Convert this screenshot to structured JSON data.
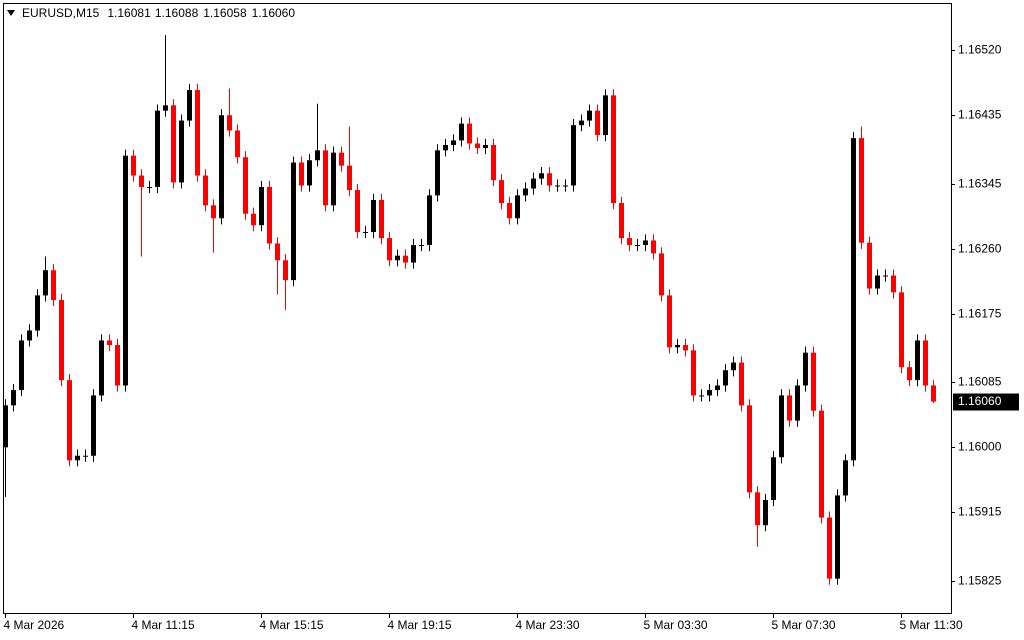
{
  "chart_data": {
    "type": "candlestick",
    "symbol": "EURUSD,M15",
    "ohlc_labels": [
      "1.16081",
      "1.16088",
      "1.16058",
      "1.16060"
    ],
    "current_price": {
      "value": 1.1606,
      "label": "1.16060"
    },
    "up_color": "#000000",
    "down_color": "#ff0000",
    "ylim": [
      1.15783,
      1.16582
    ],
    "yticks": [
      1.15825,
      1.15915,
      {
        "value": 1.16,
        "label": "1.16000"
      },
      1.16085,
      1.16175,
      {
        "value": 1.1626,
        "label": "1.16260"
      },
      1.16345,
      1.16435,
      {
        "value": 1.1652,
        "label": "1.16520"
      }
    ],
    "categories": [
      "4 Mar 2026",
      null,
      null,
      null,
      null,
      null,
      null,
      null,
      null,
      null,
      null,
      null,
      null,
      null,
      null,
      null,
      "4 Mar 11:15",
      null,
      null,
      null,
      null,
      null,
      null,
      null,
      null,
      null,
      null,
      null,
      null,
      null,
      null,
      null,
      "4 Mar 15:15",
      null,
      null,
      null,
      null,
      null,
      null,
      null,
      null,
      null,
      null,
      null,
      null,
      null,
      null,
      null,
      "4 Mar 19:15",
      null,
      null,
      null,
      null,
      null,
      null,
      null,
      null,
      null,
      null,
      null,
      null,
      null,
      null,
      null,
      "4 Mar 23:30",
      null,
      null,
      null,
      null,
      null,
      null,
      null,
      null,
      null,
      null,
      null,
      null,
      null,
      null,
      null,
      "5 Mar 03:30",
      null,
      null,
      null,
      null,
      null,
      null,
      null,
      null,
      null,
      null,
      null,
      null,
      null,
      null,
      null,
      "5 Mar 07:30",
      null,
      null,
      null,
      null,
      null,
      null,
      null,
      null,
      null,
      null,
      null,
      null,
      null,
      null,
      null,
      "5 Mar 11:30",
      null,
      null,
      null,
      null
    ],
    "open": [
      1.16,
      1.16055,
      1.16075,
      1.1614,
      1.16153,
      1.16199,
      1.16232,
      1.16193,
      1.16088,
      1.15983,
      1.15989,
      1.15989,
      1.16068,
      1.1614,
      1.16134,
      1.16081,
      1.16382,
      1.16356,
      1.16341,
      1.16341,
      1.16441,
      1.16448,
      1.16347,
      1.16428,
      1.16468,
      1.16356,
      1.16317,
      1.163,
      1.16435,
      1.16415,
      1.1638,
      1.16306,
      1.16291,
      1.16341,
      1.16267,
      1.16245,
      1.16219,
      1.16373,
      1.16343,
      1.16376,
      1.16389,
      1.16317,
      1.16386,
      1.16369,
      1.16337,
      1.16282,
      1.16282,
      1.16324,
      1.16274,
      1.16245,
      1.16251,
      1.16242,
      1.16265,
      1.16265,
      1.1633,
      1.16389,
      1.16396,
      1.16402,
      1.16424,
      1.16398,
      1.16392,
      1.16396,
      1.1635,
      1.1632,
      1.163,
      1.1633,
      1.16339,
      1.16352,
      1.16359,
      1.16343,
      1.16343,
      1.16343,
      1.16422,
      1.16428,
      1.16441,
      1.16409,
      1.16461,
      1.1632,
      1.16274,
      1.16265,
      1.16265,
      1.16271,
      1.16254,
      1.16199,
      1.16131,
      1.16134,
      1.16127,
      1.16068,
      1.16068,
      1.16075,
      1.16081,
      1.16101,
      1.16111,
      1.16055,
      1.15941,
      1.15898,
      1.15931,
      1.15987,
      1.16068,
      1.16035,
      1.16081,
      1.16124,
      1.16048,
      1.15908,
      1.15828,
      1.15937,
      1.15983,
      1.16405,
      1.16268,
      1.16208,
      1.16225,
      1.16225,
      1.16203,
      1.16105,
      1.16088,
      1.1614,
      1.16081
    ],
    "high": [
      1.16063,
      1.16083,
      1.16148,
      1.16161,
      1.16207,
      1.1625,
      1.1624,
      1.16201,
      1.16096,
      1.15997,
      1.15997,
      1.16076,
      1.16148,
      1.16148,
      1.16142,
      1.1639,
      1.1639,
      1.16364,
      1.16349,
      1.16449,
      1.1654,
      1.16456,
      1.16436,
      1.16476,
      1.16476,
      1.16364,
      1.16325,
      1.16443,
      1.1647,
      1.16423,
      1.16388,
      1.16314,
      1.16349,
      1.16349,
      1.16275,
      1.16253,
      1.16381,
      1.16381,
      1.16384,
      1.1645,
      1.16397,
      1.16394,
      1.16394,
      1.1642,
      1.16345,
      1.1629,
      1.16332,
      1.16332,
      1.16282,
      1.16259,
      1.16259,
      1.16273,
      1.16273,
      1.16338,
      1.16397,
      1.16404,
      1.1641,
      1.16432,
      1.16432,
      1.16406,
      1.16404,
      1.16404,
      1.16358,
      1.16328,
      1.16338,
      1.16347,
      1.1636,
      1.16367,
      1.16367,
      1.16351,
      1.16351,
      1.1643,
      1.16436,
      1.16449,
      1.16449,
      1.16469,
      1.16469,
      1.16328,
      1.16282,
      1.16273,
      1.16279,
      1.16279,
      1.16262,
      1.16207,
      1.16142,
      1.16142,
      1.16135,
      1.16076,
      1.16083,
      1.16089,
      1.16109,
      1.16119,
      1.16119,
      1.16063,
      1.15949,
      1.15939,
      1.15995,
      1.16076,
      1.16076,
      1.16089,
      1.16132,
      1.16132,
      1.16056,
      1.15916,
      1.15945,
      1.15991,
      1.16413,
      1.1642,
      1.16276,
      1.16233,
      1.16233,
      1.16233,
      1.16211,
      1.16113,
      1.16148,
      1.16148,
      1.16088
    ],
    "low": [
      1.15935,
      1.16047,
      1.16067,
      1.16132,
      1.16145,
      1.16191,
      1.16185,
      1.1608,
      1.15975,
      1.15975,
      1.15981,
      1.15981,
      1.1606,
      1.16126,
      1.16073,
      1.16073,
      1.16348,
      1.1625,
      1.16333,
      1.16333,
      1.16433,
      1.16339,
      1.16339,
      1.1642,
      1.16348,
      1.16309,
      1.16255,
      1.16292,
      1.16407,
      1.16372,
      1.16298,
      1.16283,
      1.16283,
      1.16259,
      1.162,
      1.1618,
      1.16211,
      1.16335,
      1.16335,
      1.16368,
      1.16309,
      1.16309,
      1.16361,
      1.16329,
      1.16274,
      1.16274,
      1.16274,
      1.16266,
      1.16237,
      1.16237,
      1.16234,
      1.16234,
      1.16257,
      1.16257,
      1.16322,
      1.16381,
      1.16388,
      1.16394,
      1.1639,
      1.16384,
      1.16384,
      1.16342,
      1.16312,
      1.16292,
      1.16292,
      1.16322,
      1.16331,
      1.16344,
      1.16335,
      1.16335,
      1.16335,
      1.16335,
      1.16414,
      1.1642,
      1.16401,
      1.16401,
      1.16312,
      1.16266,
      1.16257,
      1.16257,
      1.16257,
      1.16246,
      1.16191,
      1.16123,
      1.16123,
      1.16119,
      1.1606,
      1.1606,
      1.1606,
      1.16067,
      1.16073,
      1.16093,
      1.16047,
      1.15933,
      1.1587,
      1.1589,
      1.15923,
      1.15979,
      1.16027,
      1.16027,
      1.16073,
      1.1604,
      1.159,
      1.1582,
      1.1582,
      1.15929,
      1.15975,
      1.1626,
      1.162,
      1.162,
      1.16217,
      1.16195,
      1.16097,
      1.1608,
      1.1608,
      1.16073,
      1.16058
    ],
    "close": [
      1.16055,
      1.16075,
      1.1614,
      1.16153,
      1.16199,
      1.16232,
      1.16193,
      1.16088,
      1.15983,
      1.15989,
      1.15989,
      1.16068,
      1.1614,
      1.16134,
      1.16081,
      1.16382,
      1.16356,
      1.16341,
      1.16341,
      1.16441,
      1.16448,
      1.16347,
      1.16428,
      1.16468,
      1.16356,
      1.16317,
      1.163,
      1.16435,
      1.16415,
      1.1638,
      1.16306,
      1.16291,
      1.16341,
      1.16267,
      1.16245,
      1.16219,
      1.16373,
      1.16343,
      1.16376,
      1.16389,
      1.16317,
      1.16386,
      1.16369,
      1.16337,
      1.16282,
      1.16282,
      1.16324,
      1.16274,
      1.16245,
      1.16251,
      1.16242,
      1.16265,
      1.16265,
      1.1633,
      1.16389,
      1.16396,
      1.16402,
      1.16424,
      1.16398,
      1.16392,
      1.16396,
      1.1635,
      1.1632,
      1.163,
      1.1633,
      1.16339,
      1.16352,
      1.16359,
      1.16343,
      1.16343,
      1.16343,
      1.16422,
      1.16428,
      1.16441,
      1.16409,
      1.16461,
      1.1632,
      1.16274,
      1.16265,
      1.16265,
      1.16271,
      1.16254,
      1.16199,
      1.16131,
      1.16134,
      1.16127,
      1.16068,
      1.16068,
      1.16075,
      1.16081,
      1.16101,
      1.16111,
      1.16055,
      1.15941,
      1.15898,
      1.15931,
      1.15987,
      1.16068,
      1.16035,
      1.16081,
      1.16124,
      1.16048,
      1.15908,
      1.15828,
      1.15937,
      1.15983,
      1.16405,
      1.16268,
      1.16208,
      1.16225,
      1.16225,
      1.16203,
      1.16105,
      1.16088,
      1.1614,
      1.16081,
      1.1606
    ]
  }
}
